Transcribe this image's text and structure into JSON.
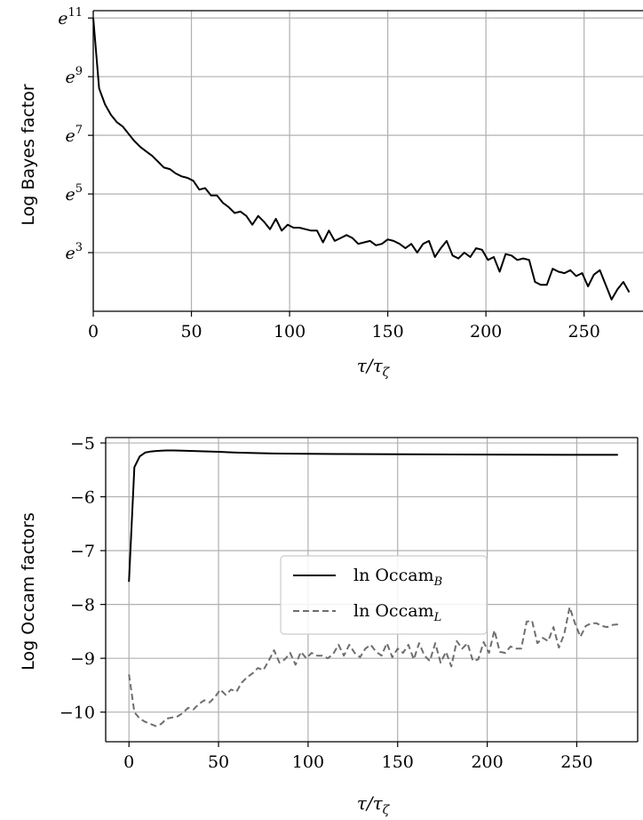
{
  "chart_data": [
    {
      "type": "line",
      "ylabel": "Log Bayes factor",
      "xlabel_parts": [
        "τ/τ",
        "ζ"
      ],
      "xlim": [
        0,
        280
      ],
      "ylim": [
        1.0,
        11.25
      ],
      "y_log_base": "e",
      "x_ticks": [
        0,
        50,
        100,
        150,
        200,
        250
      ],
      "y_ticks": [
        {
          "value": 3,
          "base": "e",
          "exp": "3"
        },
        {
          "value": 5,
          "base": "e",
          "exp": "5"
        },
        {
          "value": 7,
          "base": "e",
          "exp": "7"
        },
        {
          "value": 9,
          "base": "e",
          "exp": "9"
        },
        {
          "value": 11,
          "base": "e",
          "exp": "11"
        }
      ],
      "grid": true,
      "series": [
        {
          "color": "#000000",
          "style": "solid",
          "x": [
            0,
            3,
            6,
            9,
            12,
            15,
            18,
            21,
            24,
            27,
            30,
            33,
            36,
            39,
            42,
            45,
            48,
            51,
            54,
            57,
            60,
            63,
            66,
            69,
            72,
            75,
            78,
            81,
            84,
            87,
            90,
            93,
            96,
            99,
            102,
            105,
            108,
            111,
            114,
            117,
            120,
            123,
            126,
            129,
            132,
            135,
            138,
            141,
            144,
            147,
            150,
            153,
            156,
            159,
            162,
            165,
            168,
            171,
            174,
            177,
            180,
            183,
            186,
            189,
            192,
            195,
            198,
            201,
            204,
            207,
            210,
            213,
            216,
            219,
            222,
            225,
            228,
            231,
            234,
            237,
            240,
            243,
            246,
            249,
            252,
            255,
            258,
            261,
            264,
            267,
            270,
            273
          ],
          "y": [
            11.0,
            8.6,
            8.05,
            7.7,
            7.45,
            7.3,
            7.05,
            6.8,
            6.6,
            6.45,
            6.3,
            6.1,
            5.9,
            5.85,
            5.7,
            5.6,
            5.55,
            5.45,
            5.15,
            5.2,
            4.95,
            4.95,
            4.7,
            4.55,
            4.35,
            4.4,
            4.25,
            3.95,
            4.25,
            4.05,
            3.8,
            4.15,
            3.75,
            3.95,
            3.85,
            3.85,
            3.8,
            3.75,
            3.75,
            3.35,
            3.75,
            3.4,
            3.5,
            3.6,
            3.5,
            3.3,
            3.35,
            3.4,
            3.25,
            3.3,
            3.45,
            3.4,
            3.3,
            3.15,
            3.3,
            3.0,
            3.3,
            3.4,
            2.85,
            3.15,
            3.4,
            2.9,
            2.8,
            3.0,
            2.85,
            3.15,
            3.1,
            2.75,
            2.85,
            2.35,
            2.95,
            2.9,
            2.75,
            2.8,
            2.75,
            2.0,
            1.9,
            1.9,
            2.45,
            2.35,
            2.3,
            2.4,
            2.2,
            2.3,
            1.85,
            2.25,
            2.4,
            1.9,
            1.4,
            1.75,
            2.0,
            1.65
          ]
        }
      ]
    },
    {
      "type": "line",
      "ylabel": "Log Occam factors",
      "xlabel_parts": [
        "τ/τ",
        "ζ"
      ],
      "xlim": [
        -13,
        284
      ],
      "ylim": [
        -10.55,
        -4.9
      ],
      "x_ticks": [
        0,
        50,
        100,
        150,
        200,
        250
      ],
      "y_ticks": [
        -10,
        -9,
        -8,
        -7,
        -6,
        -5
      ],
      "y_tick_labels": [
        "−10",
        "−9",
        "−8",
        "−7",
        "−6",
        "−5"
      ],
      "grid": true,
      "legend_position": "center",
      "series": [
        {
          "name_parts": [
            "ln Occam",
            "B"
          ],
          "color": "#000000",
          "style": "solid",
          "x": [
            0,
            3,
            6,
            9,
            12,
            15,
            18,
            21,
            25,
            30,
            40,
            50,
            60,
            80,
            100,
            120,
            150,
            200,
            250,
            273
          ],
          "y": [
            -7.58,
            -5.45,
            -5.25,
            -5.18,
            -5.16,
            -5.15,
            -5.145,
            -5.14,
            -5.14,
            -5.145,
            -5.155,
            -5.165,
            -5.18,
            -5.195,
            -5.2,
            -5.205,
            -5.21,
            -5.215,
            -5.22,
            -5.22
          ]
        },
        {
          "name_parts": [
            "ln Occam",
            "L"
          ],
          "color": "#6e6e6e",
          "style": "dashed",
          "x": [
            0,
            3,
            6,
            9,
            12,
            15,
            18,
            21,
            24,
            27,
            30,
            33,
            36,
            39,
            42,
            45,
            48,
            51,
            54,
            57,
            60,
            63,
            66,
            69,
            72,
            75,
            78,
            81,
            84,
            87,
            90,
            93,
            96,
            99,
            102,
            105,
            108,
            111,
            114,
            117,
            120,
            123,
            126,
            129,
            132,
            135,
            138,
            141,
            144,
            147,
            150,
            153,
            156,
            159,
            162,
            165,
            168,
            171,
            174,
            177,
            180,
            183,
            186,
            189,
            192,
            195,
            198,
            201,
            204,
            207,
            210,
            213,
            216,
            219,
            222,
            225,
            228,
            231,
            234,
            237,
            240,
            243,
            246,
            249,
            252,
            255,
            258,
            261,
            264,
            267,
            270,
            273
          ],
          "y": [
            -9.3,
            -10.0,
            -10.12,
            -10.18,
            -10.22,
            -10.26,
            -10.22,
            -10.12,
            -10.1,
            -10.08,
            -10.02,
            -9.92,
            -9.95,
            -9.85,
            -9.78,
            -9.82,
            -9.72,
            -9.58,
            -9.68,
            -9.58,
            -9.62,
            -9.45,
            -9.35,
            -9.28,
            -9.18,
            -9.22,
            -9.05,
            -8.85,
            -9.08,
            -9.02,
            -8.9,
            -9.12,
            -8.88,
            -9.0,
            -8.9,
            -8.95,
            -8.95,
            -9.0,
            -8.92,
            -8.75,
            -8.95,
            -8.75,
            -8.9,
            -8.98,
            -8.82,
            -8.75,
            -8.88,
            -8.95,
            -8.72,
            -8.98,
            -8.82,
            -8.9,
            -8.75,
            -9.02,
            -8.72,
            -8.95,
            -9.05,
            -8.72,
            -9.08,
            -8.88,
            -9.15,
            -8.68,
            -8.82,
            -8.72,
            -9.05,
            -9.02,
            -8.7,
            -8.9,
            -8.48,
            -8.88,
            -8.9,
            -8.78,
            -8.82,
            -8.82,
            -8.32,
            -8.3,
            -8.72,
            -8.62,
            -8.68,
            -8.42,
            -8.8,
            -8.55,
            -8.05,
            -8.35,
            -8.6,
            -8.4,
            -8.35,
            -8.35,
            -8.4,
            -8.42,
            -8.38,
            -8.37
          ]
        }
      ]
    }
  ]
}
